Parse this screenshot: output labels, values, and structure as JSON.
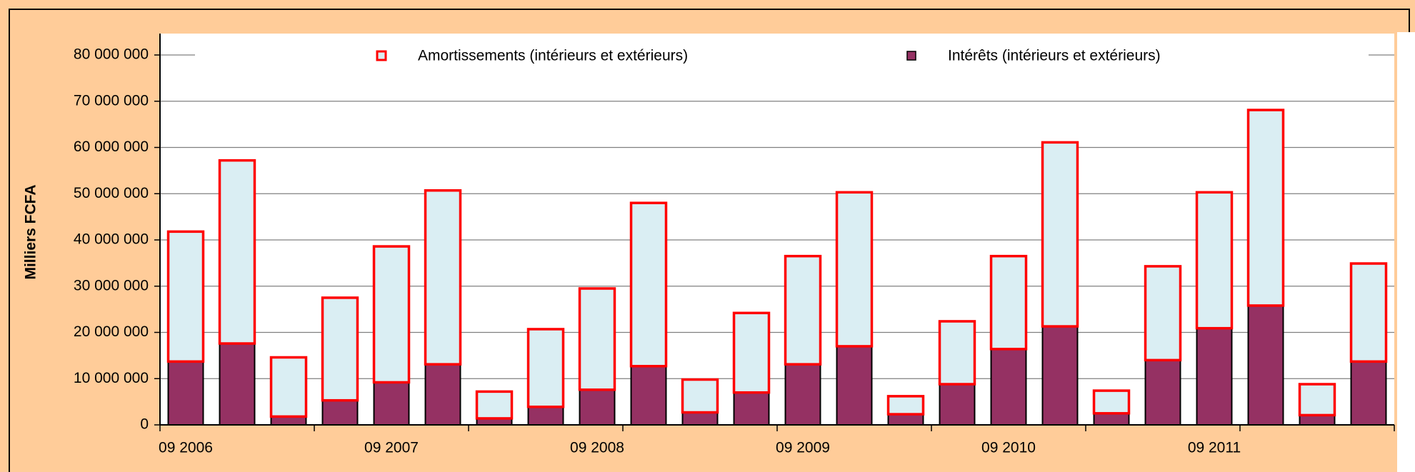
{
  "chart_data": {
    "type": "stacked_bar",
    "y_label": "Milliers FCFA",
    "categories": [
      "09 2006",
      null,
      null,
      null,
      "09 2007",
      null,
      null,
      null,
      "09 2008",
      null,
      null,
      null,
      "09 2009",
      null,
      null,
      null,
      "09 2010",
      null,
      null,
      null,
      "09 2011",
      null,
      null,
      null
    ],
    "series": [
      {
        "name": "Amortissements (intérieurs et extérieurs)",
        "color": "#daeef3",
        "edge": "#ff0000",
        "values": [
          28100000,
          39600000,
          12800000,
          22200000,
          29400000,
          37600000,
          5800000,
          16800000,
          21900000,
          35300000,
          7100000,
          17200000,
          23400000,
          33300000,
          3900000,
          13600000,
          20100000,
          39800000,
          4900000,
          20300000,
          29400000,
          42300000,
          6700000,
          21200000
        ]
      },
      {
        "name": "Intérêts (intérieurs et extérieurs)",
        "color": "#953163",
        "edge": "#000000",
        "values": [
          13700000,
          17600000,
          1800000,
          5300000,
          9200000,
          13100000,
          1400000,
          3900000,
          7600000,
          12700000,
          2700000,
          7000000,
          13100000,
          17000000,
          2300000,
          8800000,
          16400000,
          21300000,
          2500000,
          14000000,
          20900000,
          25800000,
          2100000,
          13700000
        ]
      }
    ],
    "ylim": [
      0,
      80000000
    ],
    "yticks": [
      {
        "value": 0,
        "label": "0"
      },
      {
        "value": 10000000,
        "label": "10 000 000"
      },
      {
        "value": 20000000,
        "label": "20 000 000"
      },
      {
        "value": 30000000,
        "label": "30 000 000"
      },
      {
        "value": 40000000,
        "label": "40 000 000"
      },
      {
        "value": 50000000,
        "label": "50 000 000"
      },
      {
        "value": 60000000,
        "label": "60 000 000"
      },
      {
        "value": 70000000,
        "label": "70 000 000"
      },
      {
        "value": 80000000,
        "label": "80 000 000"
      }
    ],
    "grid": true,
    "legend": "top"
  }
}
